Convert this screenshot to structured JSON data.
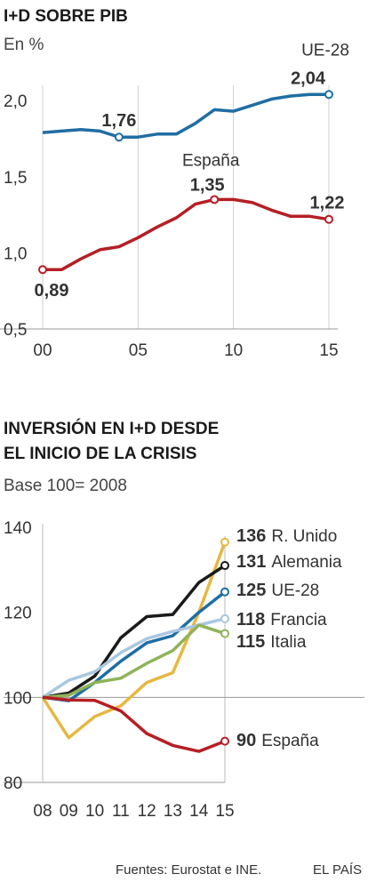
{
  "chart_data": [
    {
      "type": "line",
      "title": "I+D SOBRE PIB",
      "subtitle": "En %",
      "x": [
        0,
        1,
        2,
        3,
        4,
        5,
        6,
        7,
        8,
        9,
        10,
        11,
        12,
        13,
        14,
        15
      ],
      "x_tick_labels": [
        "00",
        "05",
        "10",
        "15"
      ],
      "x_tick_values": [
        0,
        5,
        10,
        15
      ],
      "ylim": [
        0.5,
        2.1
      ],
      "y_tick_values": [
        0.5,
        1.0,
        1.5,
        2.0
      ],
      "y_tick_labels": [
        "0,5",
        "1,0",
        "1,5",
        "2,0"
      ],
      "grid": "vertical lines at x ticks",
      "series": [
        {
          "name": "UE-28",
          "color": "#1f6ea3",
          "values": [
            1.79,
            1.8,
            1.81,
            1.8,
            1.76,
            1.76,
            1.78,
            1.78,
            1.85,
            1.94,
            1.93,
            1.97,
            2.01,
            2.03,
            2.04,
            2.04
          ],
          "markers": [
            {
              "x": 4,
              "label": "1,76"
            },
            {
              "x": 15,
              "label": "2,04"
            }
          ]
        },
        {
          "name": "España",
          "color": "#b51f25",
          "values": [
            0.89,
            0.89,
            0.96,
            1.02,
            1.04,
            1.1,
            1.17,
            1.23,
            1.32,
            1.35,
            1.35,
            1.33,
            1.28,
            1.24,
            1.24,
            1.22
          ],
          "markers": [
            {
              "x": 0,
              "label": "0,89"
            },
            {
              "x": 9,
              "label": "1,35"
            },
            {
              "x": 15,
              "label": "1,22"
            }
          ]
        }
      ]
    },
    {
      "type": "line",
      "title_line1": "INVERSIÓN EN I+D DESDE",
      "title_line2": "EL INICIO DE LA CRISIS",
      "subtitle": "Base 100= 2008",
      "categories": [
        "08",
        "09",
        "10",
        "11",
        "12",
        "13",
        "14",
        "15"
      ],
      "ylim": [
        80,
        140
      ],
      "y_tick_values": [
        80,
        100,
        120,
        140
      ],
      "y_tick_labels": [
        "80",
        "100",
        "120",
        "140"
      ],
      "grid": "horizontal line at 100",
      "series": [
        {
          "name": "R. Unido",
          "end_label": "136",
          "color": "#e6b841",
          "values": [
            100,
            90.5,
            95.5,
            98,
            103.5,
            105.8,
            120,
            136.5
          ]
        },
        {
          "name": "Alemania",
          "end_label": "131",
          "color": "#1a1a1a",
          "values": [
            100,
            101,
            105,
            114,
            119,
            119.5,
            127,
            131
          ]
        },
        {
          "name": "UE-28",
          "end_label": "125",
          "color": "#1f6ea3",
          "values": [
            100,
            99.2,
            103.5,
            108.5,
            112.8,
            114.5,
            120,
            124.8
          ]
        },
        {
          "name": "Francia",
          "end_label": "118",
          "color": "#a9c7e0",
          "values": [
            100,
            104,
            106,
            110.5,
            113.8,
            115.5,
            117,
            118.5
          ]
        },
        {
          "name": "Italia",
          "end_label": "115",
          "color": "#8fb35a",
          "values": [
            100,
            100.5,
            103.5,
            104.5,
            108,
            111,
            117,
            115
          ]
        },
        {
          "name": "España",
          "end_label": "90",
          "color": "#b51f25",
          "values": [
            100,
            99.4,
            99.3,
            96.8,
            91.5,
            88.7,
            87.3,
            89.7
          ]
        }
      ]
    }
  ],
  "footer": {
    "sources": "Fuentes: Eurostat e INE.",
    "brand": "EL PAÍS"
  }
}
